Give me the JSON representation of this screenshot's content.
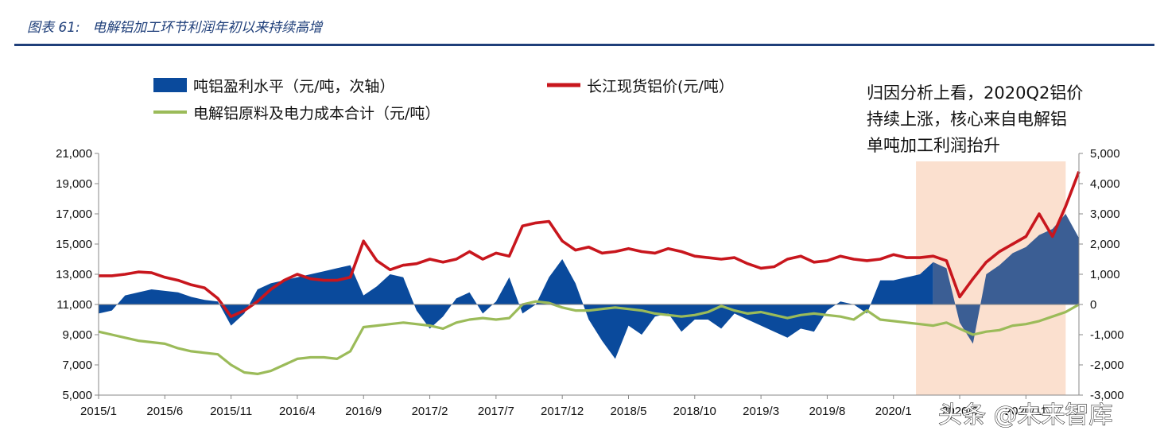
{
  "figure_label": "图表 61:",
  "figure_title": "电解铝加工环节利润年初以来持续高增",
  "annotation_lines": [
    "归因分析上看，2020Q2铝价",
    "持续上涨，核心来自电解铝",
    "单吨加工利润抬升"
  ],
  "watermark": "头条 @未来智库",
  "colors": {
    "title": "#1f3f7a",
    "profit": "#0a4a9c",
    "profit_highlight": "#3b5e94",
    "price": "#c8161d",
    "cost": "#9bbb59",
    "highlight_band": "#fbe0cf",
    "axis": "#888888"
  },
  "chart_data": {
    "type": "area",
    "legend": [
      {
        "name": "吨铝盈利水平（元/吨，次轴）",
        "marker": "area",
        "color": "#0a4a9c"
      },
      {
        "name": "长江现货铝价(元/吨）",
        "marker": "line",
        "color": "#c8161d"
      },
      {
        "name": "电解铝原料及电力成本合计（元/吨）",
        "marker": "line",
        "color": "#9bbb59"
      }
    ],
    "x_tick_labels": [
      "2015/1",
      "2015/6",
      "2015/11",
      "2016/4",
      "2016/9",
      "2017/2",
      "2017/7",
      "2017/12",
      "2018/5",
      "2018/10",
      "2019/3",
      "2019/8",
      "2020/1",
      "2020/6",
      "2020/11"
    ],
    "x_range": [
      "2015/1",
      "2021/2"
    ],
    "y_left": {
      "min": 5000,
      "max": 21000,
      "step": 2000,
      "tick_labels": [
        "5,000",
        "7,000",
        "9,000",
        "11,000",
        "13,000",
        "15,000",
        "17,000",
        "19,000",
        "21,000"
      ]
    },
    "y_right": {
      "min": -3000,
      "max": 5000,
      "step": 1000,
      "tick_labels": [
        "-3,000",
        "-2,000",
        "-1,000",
        "0",
        "1,000",
        "2,000",
        "3,000",
        "4,000",
        "5,000"
      ]
    },
    "highlight_period": [
      "2020/3",
      "2021/2"
    ],
    "series": [
      {
        "name": "吨铝盈利水平（元/吨，次轴）",
        "axis": "right",
        "kind": "area",
        "x": [
          0,
          1,
          2,
          3,
          4,
          5,
          6,
          7,
          8,
          9,
          10,
          11,
          12,
          13,
          14,
          15,
          16,
          17,
          18,
          19,
          20,
          21,
          22,
          23,
          24,
          25,
          26,
          27,
          28,
          29,
          30,
          31,
          32,
          33,
          34,
          35,
          36,
          37,
          38,
          39,
          40,
          41,
          42,
          43,
          44,
          45,
          46,
          47,
          48,
          49,
          50,
          51,
          52,
          53,
          54,
          55,
          56,
          57,
          58,
          59,
          60,
          61,
          62,
          63,
          64,
          65,
          66,
          67,
          68,
          69,
          70,
          71,
          72,
          73,
          74
        ],
        "values": [
          -300,
          -200,
          300,
          400,
          500,
          450,
          400,
          250,
          150,
          100,
          -700,
          -300,
          500,
          700,
          800,
          900,
          1000,
          1100,
          1200,
          1300,
          300,
          600,
          1000,
          900,
          -200,
          -800,
          -400,
          200,
          400,
          -300,
          100,
          900,
          -300,
          0,
          900,
          1500,
          700,
          -500,
          -1200,
          -1800,
          -700,
          -1000,
          -400,
          -300,
          -900,
          -500,
          -500,
          -800,
          -300,
          -500,
          -700,
          -900,
          -1100,
          -800,
          -900,
          -200,
          100,
          0,
          -300,
          800,
          800,
          900,
          1000,
          1400,
          1200,
          -600,
          -1300,
          1000,
          1300,
          1700,
          1900,
          2300,
          2500,
          3000,
          2200
        ]
      },
      {
        "name": "长江现货铝价(元/吨）",
        "axis": "left",
        "kind": "line",
        "x": [
          0,
          1,
          2,
          3,
          4,
          5,
          6,
          7,
          8,
          9,
          10,
          11,
          12,
          13,
          14,
          15,
          16,
          17,
          18,
          19,
          20,
          21,
          22,
          23,
          24,
          25,
          26,
          27,
          28,
          29,
          30,
          31,
          32,
          33,
          34,
          35,
          36,
          37,
          38,
          39,
          40,
          41,
          42,
          43,
          44,
          45,
          46,
          47,
          48,
          49,
          50,
          51,
          52,
          53,
          54,
          55,
          56,
          57,
          58,
          59,
          60,
          61,
          62,
          63,
          64,
          65,
          66,
          67,
          68,
          69,
          70,
          71,
          72,
          73,
          74
        ],
        "values": [
          12900,
          12900,
          13000,
          13150,
          13100,
          12800,
          12600,
          12300,
          12100,
          11400,
          10200,
          10600,
          11200,
          12000,
          12600,
          13000,
          12700,
          12600,
          12600,
          12800,
          15200,
          13900,
          13300,
          13600,
          13700,
          14000,
          13800,
          14000,
          14500,
          14000,
          14400,
          14200,
          16200,
          16400,
          16500,
          15200,
          14600,
          14800,
          14400,
          14500,
          14700,
          14500,
          14400,
          14700,
          14500,
          14200,
          14100,
          14000,
          14100,
          13700,
          13400,
          13500,
          14000,
          14200,
          13800,
          13900,
          14200,
          14000,
          13900,
          14000,
          14300,
          14100,
          14100,
          14200,
          13900,
          11500,
          12700,
          13800,
          14500,
          15000,
          15500,
          17000,
          15500,
          17500,
          19800
        ]
      },
      {
        "name": "电解铝原料及电力成本合计（元/吨）",
        "axis": "left",
        "kind": "line",
        "x": [
          0,
          1,
          2,
          3,
          4,
          5,
          6,
          7,
          8,
          9,
          10,
          11,
          12,
          13,
          14,
          15,
          16,
          17,
          18,
          19,
          20,
          21,
          22,
          23,
          24,
          25,
          26,
          27,
          28,
          29,
          30,
          31,
          32,
          33,
          34,
          35,
          36,
          37,
          38,
          39,
          40,
          41,
          42,
          43,
          44,
          45,
          46,
          47,
          48,
          49,
          50,
          51,
          52,
          53,
          54,
          55,
          56,
          57,
          58,
          59,
          60,
          61,
          62,
          63,
          64,
          65,
          66,
          67,
          68,
          69,
          70,
          71,
          72,
          73,
          74
        ],
        "values": [
          9200,
          9000,
          8800,
          8600,
          8500,
          8400,
          8100,
          7900,
          7800,
          7700,
          7000,
          6500,
          6400,
          6600,
          7000,
          7400,
          7500,
          7500,
          7400,
          7900,
          9500,
          9600,
          9700,
          9800,
          9700,
          9600,
          9400,
          9800,
          10000,
          10100,
          10000,
          10100,
          11000,
          11200,
          11100,
          10800,
          10600,
          10600,
          10700,
          10800,
          10700,
          10600,
          10400,
          10300,
          10200,
          10300,
          10500,
          10900,
          10600,
          10400,
          10500,
          10300,
          10100,
          10300,
          10400,
          10300,
          10200,
          10000,
          10600,
          10000,
          9900,
          9800,
          9700,
          9600,
          9800,
          9400,
          9000,
          9200,
          9300,
          9600,
          9700,
          9900,
          10200,
          10500,
          11000
        ]
      }
    ]
  }
}
